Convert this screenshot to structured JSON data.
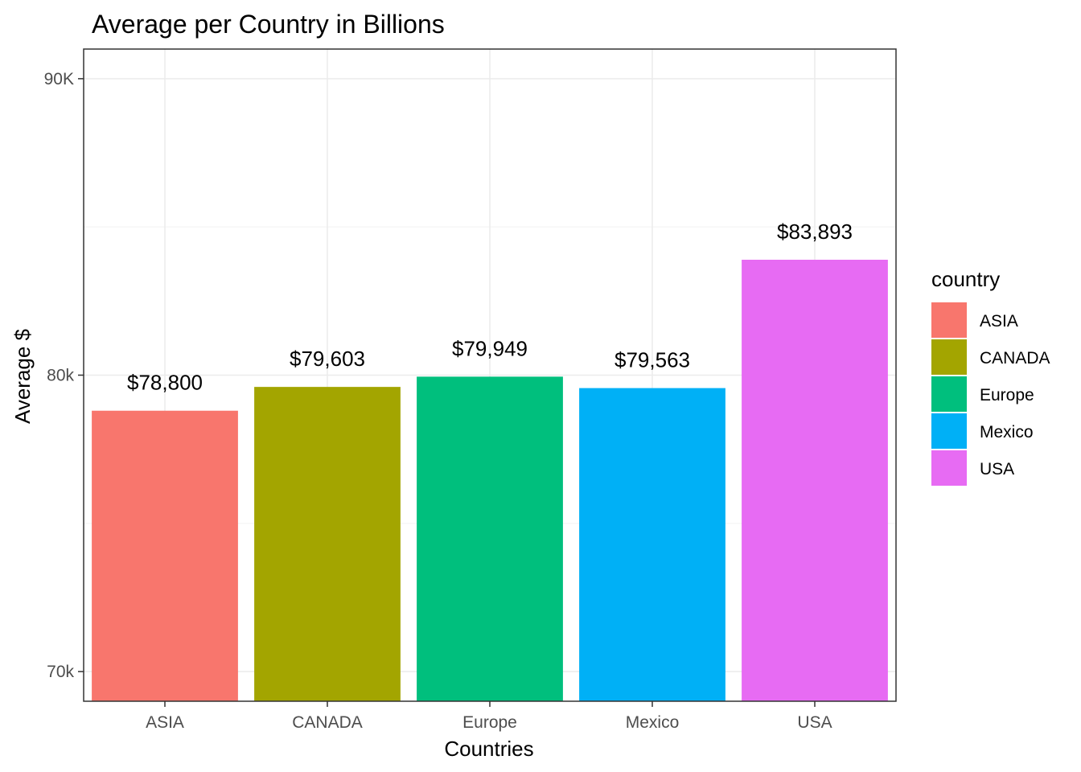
{
  "chart_data": {
    "type": "bar",
    "title": "Average per Country in Billions",
    "xlabel": "Countries",
    "ylabel": "Average $",
    "categories": [
      "ASIA",
      "CANADA",
      "Europe",
      "Mexico",
      "USA"
    ],
    "values": [
      78800,
      79603,
      79949,
      79563,
      83893
    ],
    "value_labels": [
      "$78,800",
      "$79,603",
      "$79,949",
      "$79,563",
      "$83,893"
    ],
    "colors": [
      "#F8766D",
      "#A3A500",
      "#00BF7D",
      "#00B0F6",
      "#E76BF3"
    ],
    "ylim": [
      69000,
      91000
    ],
    "yticks": [
      70000,
      80000,
      90000
    ],
    "ytick_labels": [
      "70k",
      "80k",
      "90K"
    ],
    "grid": true,
    "legend": {
      "title": "country",
      "position": "right",
      "items": [
        "ASIA",
        "CANADA",
        "Europe",
        "Mexico",
        "USA"
      ]
    }
  }
}
